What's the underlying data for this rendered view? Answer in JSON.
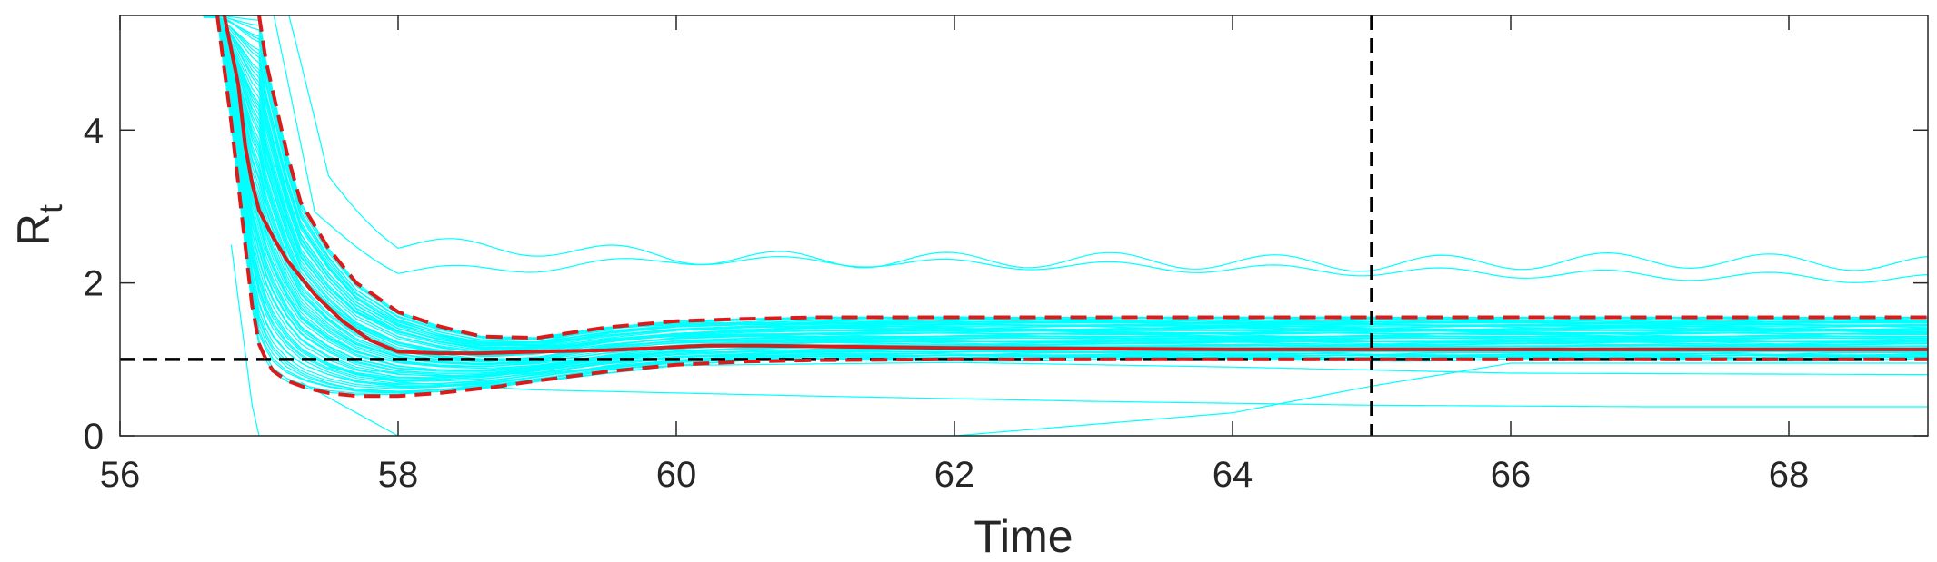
{
  "chart_data": {
    "type": "line",
    "title": "",
    "xlabel": "Time",
    "ylabel_main": "R",
    "ylabel_sub": "t",
    "xlim": [
      56,
      69
    ],
    "ylim": [
      0,
      5.5
    ],
    "xticks": [
      56,
      58,
      60,
      62,
      64,
      66,
      68
    ],
    "yticks": [
      0,
      2,
      4
    ],
    "grid": false,
    "reference_lines": {
      "horizontal_y": 1,
      "vertical_x": 65
    },
    "colors": {
      "ensemble": "#00ffff",
      "median": "#dd1a1a",
      "bounds": "#dd1a1a",
      "reference": "#000000",
      "axes": "#262626"
    },
    "series": [
      {
        "style": "solid",
        "role": "median",
        "x": [
          56.75,
          56.85,
          56.9,
          56.95,
          57.0,
          57.1,
          57.2,
          57.4,
          57.6,
          57.8,
          58.0,
          58.3,
          58.6,
          59.0,
          59.5,
          60.0,
          60.2,
          60.6,
          61.0,
          62.0,
          63.0,
          64.0,
          65.0,
          66.0,
          67.0,
          68.0,
          69.0
        ],
        "y": [
          5.5,
          4.6,
          3.8,
          3.3,
          2.95,
          2.6,
          2.3,
          1.85,
          1.5,
          1.25,
          1.1,
          1.08,
          1.08,
          1.1,
          1.12,
          1.16,
          1.18,
          1.18,
          1.17,
          1.15,
          1.14,
          1.13,
          1.13,
          1.13,
          1.13,
          1.13,
          1.13
        ]
      },
      {
        "style": "dashed",
        "role": "upper",
        "x": [
          57.0,
          57.05,
          57.1,
          57.2,
          57.3,
          57.5,
          57.7,
          58.0,
          58.3,
          58.6,
          59.0,
          59.5,
          60.0,
          60.5,
          61.0,
          62.0,
          63.0,
          64.0,
          65.0,
          66.0,
          67.0,
          68.0,
          69.0
        ],
        "y": [
          5.5,
          4.9,
          4.5,
          3.7,
          3.05,
          2.45,
          2.0,
          1.62,
          1.43,
          1.3,
          1.28,
          1.42,
          1.5,
          1.53,
          1.55,
          1.55,
          1.55,
          1.55,
          1.55,
          1.55,
          1.55,
          1.55,
          1.55
        ]
      },
      {
        "style": "dashed",
        "role": "lower",
        "x": [
          56.7,
          56.8,
          56.85,
          56.9,
          56.95,
          57.0,
          57.05,
          57.1,
          57.2,
          57.35,
          57.5,
          57.7,
          58.0,
          58.3,
          58.7,
          59.0,
          59.5,
          60.0,
          60.5,
          61.0,
          62.0,
          63.0,
          64.0,
          65.0,
          66.0,
          67.0,
          68.0,
          69.0
        ],
        "y": [
          5.5,
          4.1,
          3.3,
          2.5,
          1.7,
          1.2,
          1.0,
          0.85,
          0.72,
          0.62,
          0.56,
          0.52,
          0.52,
          0.56,
          0.64,
          0.72,
          0.84,
          0.93,
          0.97,
          0.99,
          1.0,
          1.0,
          1.0,
          1.0,
          1.0,
          1.0,
          1.0,
          1.0
        ]
      }
    ]
  }
}
